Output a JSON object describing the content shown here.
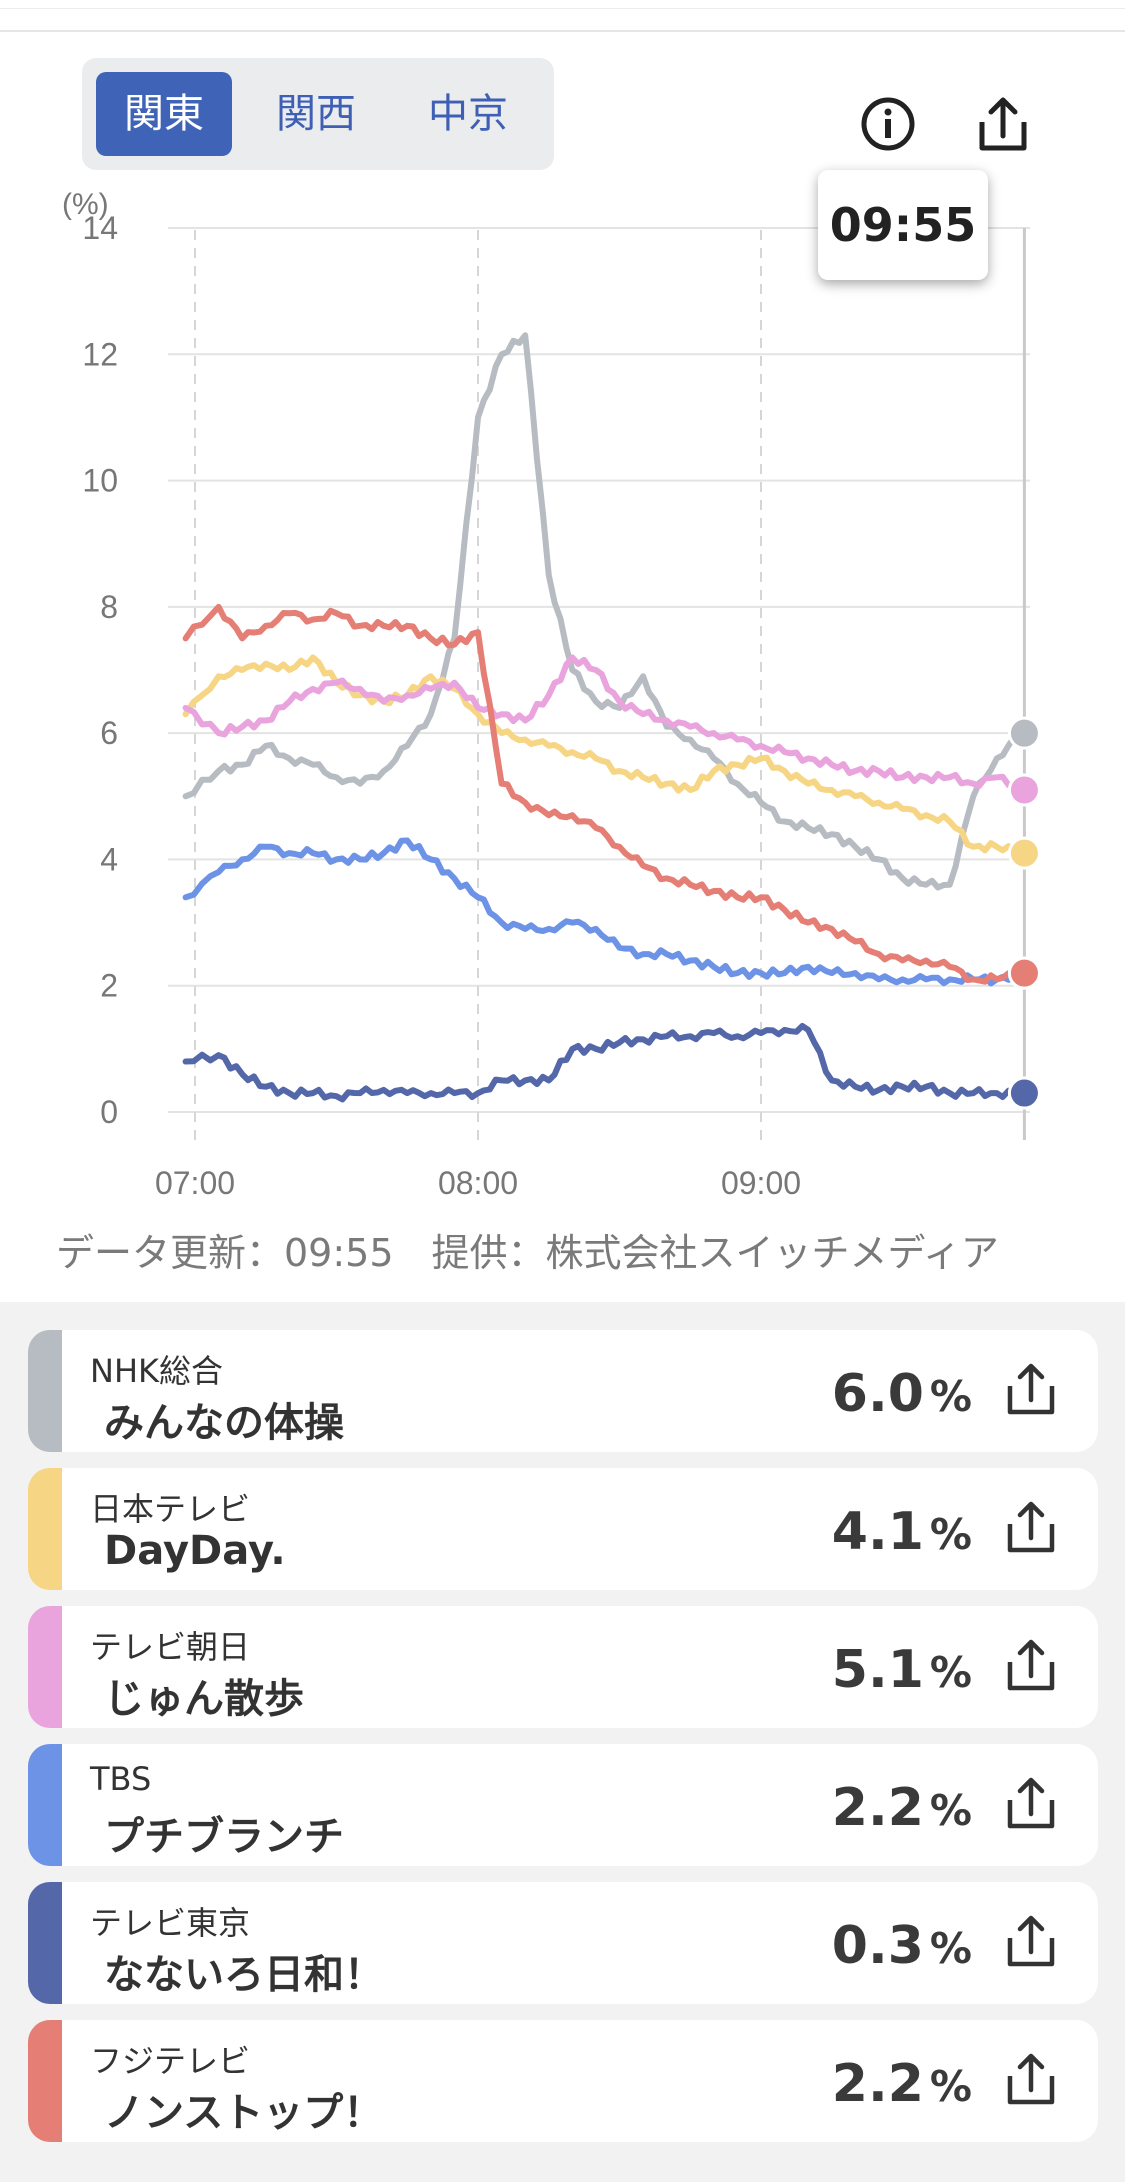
{
  "regions": {
    "tabs": [
      "関東",
      "関西",
      "中京"
    ],
    "active": "関東"
  },
  "tooltip_time": "09:55",
  "footer_note": "データ更新：09:55　提供：株式会社スイッチメディア",
  "chart_data": {
    "type": "line",
    "ylabel": "(%)",
    "ylim": [
      0,
      14
    ],
    "yticks": [
      0,
      2,
      4,
      6,
      8,
      10,
      12,
      14
    ],
    "xlim": [
      "06:58",
      "09:55"
    ],
    "xticks": [
      "07:00",
      "08:00",
      "09:00"
    ],
    "x": [
      "06:58",
      "07:05",
      "07:10",
      "07:15",
      "07:20",
      "07:25",
      "07:30",
      "07:35",
      "07:40",
      "07:45",
      "07:50",
      "07:55",
      "08:00",
      "08:05",
      "08:10",
      "08:15",
      "08:20",
      "08:25",
      "08:30",
      "08:35",
      "08:40",
      "08:45",
      "08:50",
      "08:55",
      "09:00",
      "09:05",
      "09:10",
      "09:15",
      "09:20",
      "09:25",
      "09:30",
      "09:35",
      "09:40",
      "09:45",
      "09:50",
      "09:55"
    ],
    "series": [
      {
        "name": "NHK総合",
        "color": "#b7bbc2",
        "values": [
          5.0,
          5.4,
          5.5,
          5.8,
          5.6,
          5.5,
          5.3,
          5.2,
          5.4,
          5.8,
          6.3,
          7.5,
          11.0,
          12.0,
          12.3,
          8.5,
          7.0,
          6.5,
          6.4,
          6.9,
          6.1,
          5.9,
          5.6,
          5.2,
          4.9,
          4.6,
          4.5,
          4.4,
          4.2,
          4.0,
          3.7,
          3.6,
          3.6,
          5.0,
          5.6,
          6.0
        ]
      },
      {
        "name": "日本テレビ",
        "color": "#f6d684",
        "values": [
          6.3,
          6.9,
          7.0,
          7.1,
          7.0,
          7.2,
          6.8,
          6.6,
          6.5,
          6.6,
          6.9,
          6.7,
          6.3,
          6.0,
          5.9,
          5.8,
          5.7,
          5.6,
          5.4,
          5.3,
          5.2,
          5.1,
          5.4,
          5.5,
          5.6,
          5.4,
          5.2,
          5.1,
          5.0,
          4.9,
          4.8,
          4.7,
          4.6,
          4.2,
          4.2,
          4.1
        ]
      },
      {
        "name": "テレビ朝日",
        "color": "#e9a4dd",
        "values": [
          6.4,
          6.0,
          6.1,
          6.2,
          6.5,
          6.7,
          6.8,
          6.7,
          6.5,
          6.6,
          6.7,
          6.8,
          6.4,
          6.3,
          6.2,
          6.6,
          7.2,
          7.0,
          6.5,
          6.3,
          6.2,
          6.1,
          6.0,
          5.9,
          5.8,
          5.7,
          5.6,
          5.5,
          5.4,
          5.4,
          5.3,
          5.3,
          5.3,
          5.2,
          5.3,
          5.1
        ]
      },
      {
        "name": "TBS",
        "color": "#6d93e6",
        "values": [
          3.4,
          3.8,
          4.0,
          4.2,
          4.1,
          4.1,
          4.0,
          4.0,
          4.1,
          4.3,
          4.0,
          3.7,
          3.4,
          3.0,
          2.9,
          2.9,
          3.0,
          2.9,
          2.6,
          2.5,
          2.5,
          2.4,
          2.3,
          2.2,
          2.2,
          2.2,
          2.3,
          2.2,
          2.2,
          2.1,
          2.1,
          2.1,
          2.1,
          2.1,
          2.1,
          2.2
        ]
      },
      {
        "name": "テレビ東京",
        "color": "#5467a9",
        "values": [
          0.8,
          0.9,
          0.6,
          0.4,
          0.3,
          0.3,
          0.25,
          0.3,
          0.35,
          0.3,
          0.3,
          0.3,
          0.3,
          0.5,
          0.5,
          0.5,
          1.0,
          1.0,
          1.1,
          1.15,
          1.2,
          1.2,
          1.25,
          1.2,
          1.25,
          1.3,
          1.3,
          0.5,
          0.4,
          0.35,
          0.4,
          0.4,
          0.3,
          0.3,
          0.3,
          0.3
        ]
      },
      {
        "name": "フジテレビ",
        "color": "#e57e75",
        "values": [
          7.5,
          8.0,
          7.5,
          7.7,
          7.9,
          7.8,
          7.9,
          7.7,
          7.7,
          7.7,
          7.5,
          7.4,
          7.6,
          5.2,
          4.9,
          4.7,
          4.7,
          4.5,
          4.2,
          3.9,
          3.7,
          3.6,
          3.5,
          3.4,
          3.4,
          3.2,
          3.0,
          2.9,
          2.7,
          2.5,
          2.4,
          2.4,
          2.3,
          2.1,
          2.1,
          2.2
        ]
      }
    ]
  },
  "programs": [
    {
      "channel": "NHK総合",
      "title": "みんなの体操",
      "rating": "6.0",
      "unit": "%",
      "color": "#b7bbc2"
    },
    {
      "channel": "日本テレビ",
      "title": "DayDay.",
      "rating": "4.1",
      "unit": "%",
      "color": "#f6d684"
    },
    {
      "channel": "テレビ朝日",
      "title": "じゅん散歩",
      "rating": "5.1",
      "unit": "%",
      "color": "#e9a4dd"
    },
    {
      "channel": "TBS",
      "title": "プチブランチ",
      "rating": "2.2",
      "unit": "%",
      "color": "#6d93e6"
    },
    {
      "channel": "テレビ東京",
      "title": "なないろ日和！",
      "rating": "0.3",
      "unit": "%",
      "color": "#5467a9"
    },
    {
      "channel": "フジテレビ",
      "title": "ノンストップ！",
      "rating": "2.2",
      "unit": "%",
      "color": "#e57e75"
    }
  ],
  "icons": {
    "info": "info-icon",
    "share": "share-icon"
  }
}
